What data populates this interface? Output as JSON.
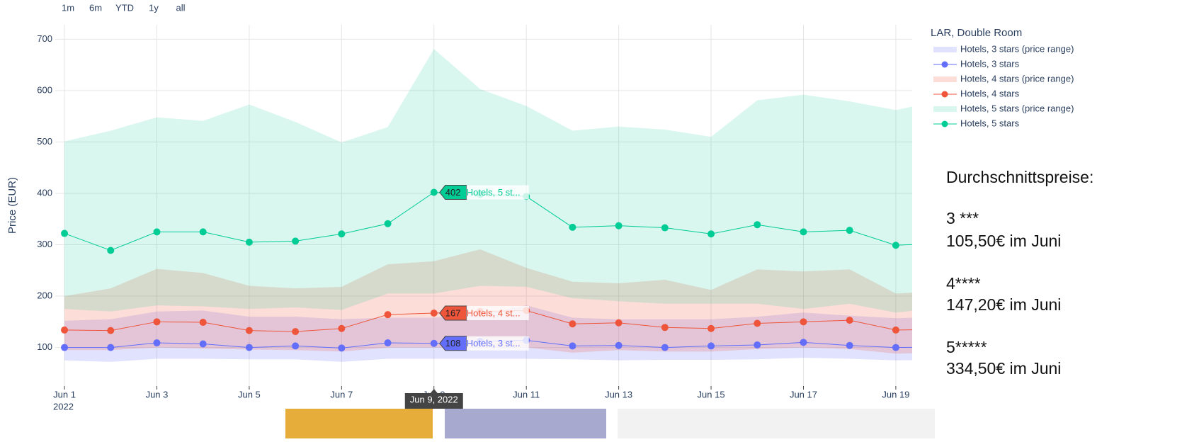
{
  "range_buttons": [
    "1m",
    "6m",
    "YTD",
    "1y",
    "all"
  ],
  "chart_data": {
    "type": "line",
    "y_label": "Price (EUR)",
    "legend_title": "LAR, Double Room",
    "legend": "right",
    "grid": true,
    "x": [
      "2022-06-01",
      "2022-06-02",
      "2022-06-03",
      "2022-06-04",
      "2022-06-05",
      "2022-06-06",
      "2022-06-07",
      "2022-06-08",
      "2022-06-09",
      "2022-06-10",
      "2022-06-11",
      "2022-06-12",
      "2022-06-13",
      "2022-06-14",
      "2022-06-15",
      "2022-06-16",
      "2022-06-17",
      "2022-06-18",
      "2022-06-19",
      "2022-06-20"
    ],
    "xlim": [
      "2022-05-31T19:12",
      "2022-06-19T08:30"
    ],
    "xticks": [
      {
        "value": "2022-06-01",
        "label": "Jun 1"
      },
      {
        "value": "2022-06-03",
        "label": "Jun 3"
      },
      {
        "value": "2022-06-05",
        "label": "Jun 5"
      },
      {
        "value": "2022-06-07",
        "label": "Jun 7"
      },
      {
        "value": "2022-06-09",
        "label": "Jun 9"
      },
      {
        "value": "2022-06-11",
        "label": "Jun 11"
      },
      {
        "value": "2022-06-13",
        "label": "Jun 13"
      },
      {
        "value": "2022-06-15",
        "label": "Jun 15"
      },
      {
        "value": "2022-06-17",
        "label": "Jun 17"
      },
      {
        "value": "2022-06-19",
        "label": "Jun 19"
      }
    ],
    "x_year_label": "2022",
    "ylim": [
      25,
      728
    ],
    "yticks": [
      100,
      200,
      300,
      400,
      500,
      600,
      700
    ],
    "series": [
      {
        "name": "Hotels, 3 stars",
        "range_name": "Hotels, 3 stars (price range)",
        "color": "#636efa",
        "range_color": "rgba(99,110,250,0.2)",
        "values": [
          100,
          100,
          109,
          107,
          100,
          103,
          99,
          109,
          108,
          112,
          114,
          103,
          104,
          100,
          103,
          105,
          110,
          104,
          100,
          101
        ],
        "low": [
          75,
          72,
          78,
          78,
          77,
          77,
          72,
          78,
          78,
          78,
          78,
          77,
          75,
          76,
          76,
          77,
          80,
          78,
          75,
          76
        ],
        "high": [
          152,
          155,
          170,
          172,
          160,
          160,
          155,
          158,
          158,
          165,
          182,
          158,
          155,
          155,
          155,
          160,
          168,
          162,
          157,
          160
        ]
      },
      {
        "name": "Hotels, 4 stars",
        "range_name": "Hotels, 4 stars (price range)",
        "color": "#ef553b",
        "range_color": "rgba(239,85,59,0.2)",
        "values": [
          134,
          133,
          150,
          149,
          133,
          131,
          137,
          164,
          167,
          170,
          172,
          146,
          148,
          139,
          137,
          147,
          150,
          153,
          134,
          135
        ],
        "low": [
          95,
          95,
          100,
          98,
          96,
          95,
          92,
          100,
          100,
          100,
          100,
          90,
          95,
          92,
          92,
          97,
          100,
          97,
          88,
          90
        ],
        "high": [
          200,
          215,
          253,
          245,
          220,
          215,
          218,
          262,
          268,
          291,
          255,
          228,
          225,
          232,
          212,
          252,
          248,
          252,
          205,
          210
        ]
      },
      {
        "name": "Hotels, 5 stars",
        "range_name": "Hotels, 5 stars (price range)",
        "color": "#00cc96",
        "range_color": "rgba(0,204,150,0.15)",
        "values": [
          322,
          289,
          325,
          325,
          305,
          307,
          321,
          341,
          402,
          398,
          394,
          334,
          337,
          333,
          321,
          339,
          325,
          328,
          299,
          303
        ],
        "low": [
          175,
          170,
          182,
          180,
          175,
          178,
          173,
          205,
          205,
          220,
          218,
          196,
          190,
          185,
          185,
          185,
          175,
          185,
          168,
          178
        ],
        "high": [
          501,
          522,
          548,
          541,
          573,
          539,
          499,
          529,
          681,
          603,
          570,
          522,
          530,
          524,
          510,
          581,
          592,
          579,
          562,
          581
        ]
      }
    ],
    "hover": {
      "index": 8,
      "x_label": "Jun 9, 2022",
      "labels": [
        "Hotels, 3 st...",
        "Hotels, 4 st...",
        "Hotels, 5 st..."
      ]
    }
  },
  "side_text": {
    "title": "Durchschnittspreise:",
    "items": [
      {
        "stars": "3 ***",
        "price": "105,50€ im Juni"
      },
      {
        "stars": "4****",
        "price": "147,20€ im Juni"
      },
      {
        "stars": "5*****",
        "price": "334,50€ im Juni"
      }
    ]
  }
}
